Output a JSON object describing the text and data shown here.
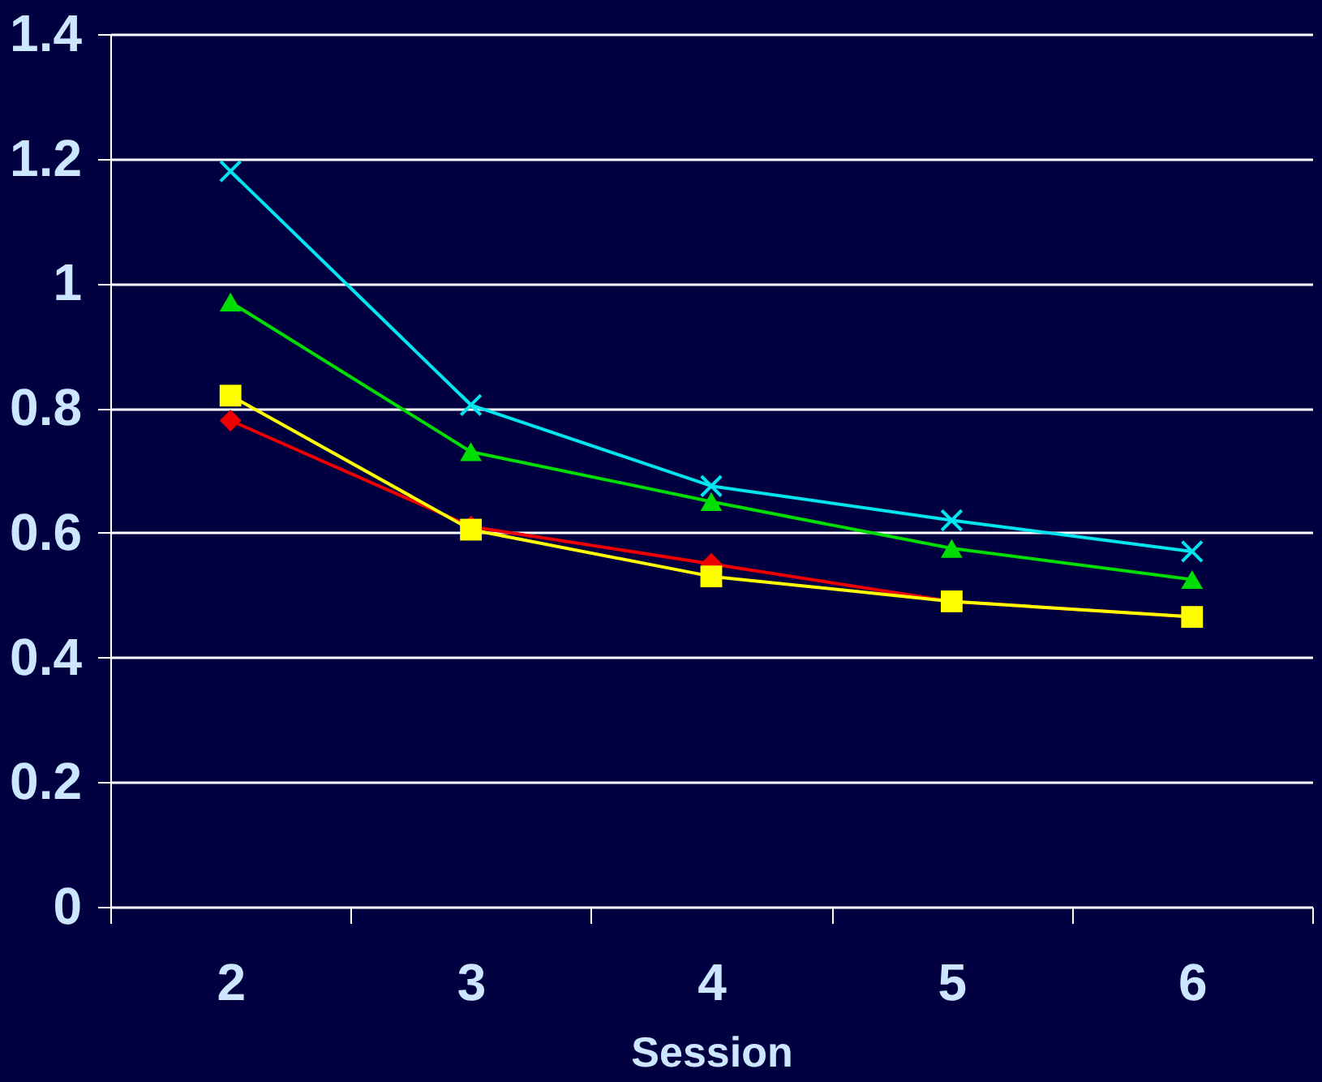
{
  "chart_data": {
    "type": "line",
    "xlabel": "Session",
    "categories": [
      "2",
      "3",
      "4",
      "5",
      "6"
    ],
    "ylim": [
      0,
      1.4
    ],
    "yticks": [
      0,
      0.2,
      0.4,
      0.6,
      0.8,
      1,
      1.2,
      1.4
    ],
    "grid": "y",
    "line_style": "solid",
    "series": [
      {
        "color": "#00e5ee",
        "marker": "cross",
        "values": [
          1.18,
          0.805,
          0.675,
          0.62,
          0.57
        ]
      },
      {
        "color": "#00dd00",
        "marker": "triangle",
        "values": [
          0.97,
          0.73,
          0.65,
          0.575,
          0.525
        ]
      },
      {
        "color": "#ee0000",
        "marker": "diamond",
        "values": [
          0.78,
          0.61,
          0.55,
          0.49,
          0.465
        ]
      },
      {
        "color": "#ffff00",
        "marker": "square",
        "values": [
          0.82,
          0.605,
          0.53,
          0.49,
          0.465
        ]
      }
    ]
  }
}
